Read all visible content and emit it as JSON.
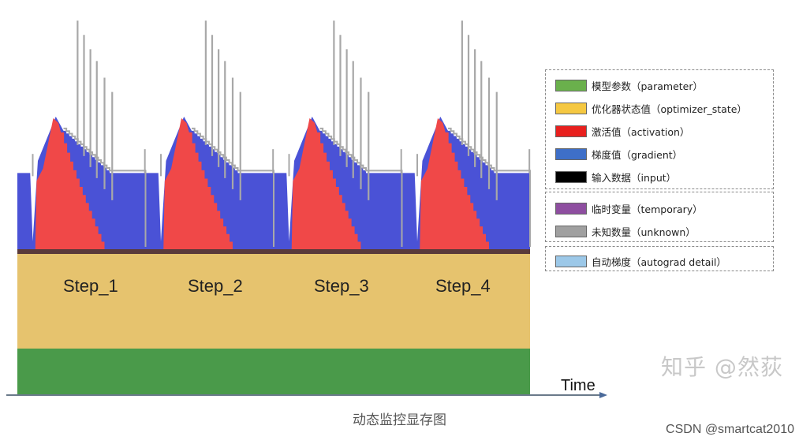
{
  "chart_data": {
    "type": "area",
    "xlabel": "Time",
    "steps": [
      "Step_1",
      "Step_2",
      "Step_3",
      "Step_4"
    ],
    "static_layers": [
      {
        "name": "模型参数（parameter）",
        "color": "#4a9a4a"
      },
      {
        "name": "优化器状态值（optimizer_state）",
        "color": "#e6c36e"
      }
    ],
    "dynamic_layers": [
      {
        "name": "激活值（activation）",
        "color": "#f04848",
        "shape": "sawtooth-peak",
        "peak_fraction": 0.95
      },
      {
        "name": "梯度值（gradient）",
        "color": "#4a52d6",
        "baseline_fraction": 0.32
      },
      {
        "name": "未知数量（unknown）",
        "color": "#a8a8a8",
        "shape": "spikes"
      }
    ],
    "legend": {
      "placement": "right",
      "groups": [
        [
          {
            "label": "模型参数（parameter）",
            "color": "#6ab04c"
          },
          {
            "label": "优化器状态值（optimizer_state）",
            "color": "#f5c842"
          },
          {
            "label": "激活值（activation）",
            "color": "#e8201e"
          },
          {
            "label": "梯度值（gradient）",
            "color": "#3e6fc8"
          },
          {
            "label": "输入数据（input）",
            "color": "#000000"
          }
        ],
        [
          {
            "label": "临时变量（temporary）",
            "color": "#8e4ea0"
          },
          {
            "label": "未知数量（unknown）",
            "color": "#a0a0a0"
          }
        ],
        [
          {
            "label": "自动梯度（autograd detail）",
            "color": "#9cc8e8"
          }
        ]
      ]
    }
  },
  "watermark": "知乎 @然荻",
  "caption": "动态监控显存图",
  "credit": "CSDN @smartcat2010"
}
